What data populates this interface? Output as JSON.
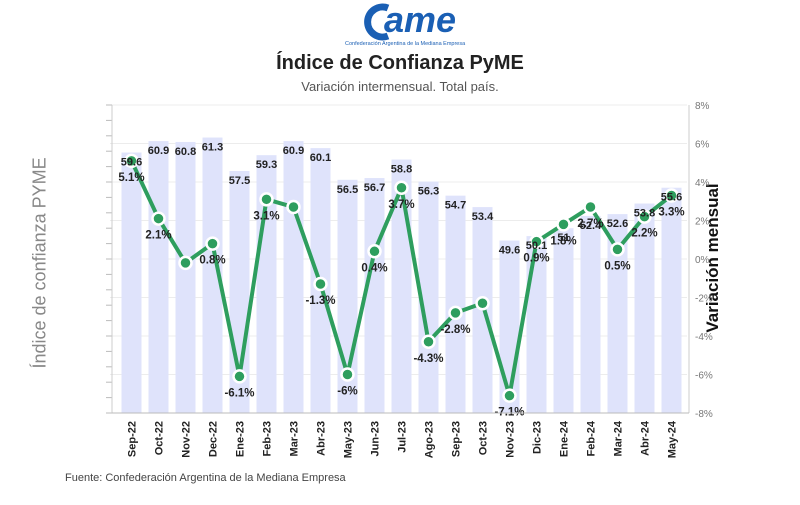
{
  "header": {
    "logo_text": "ame",
    "logo_subtitle": "Confederación Argentina de la Mediana Empresa",
    "title": "Índice de Confianza PyME",
    "subtitle": "Variación intermensual. Total país."
  },
  "footer": {
    "source": "Fuente: Confederación Argentina de la Mediana Empresa"
  },
  "colors": {
    "bar": "#dfe3fb",
    "line": "#2e9e5e",
    "marker_fill": "#2e9e5e",
    "marker_stroke": "#ffffff",
    "logo": "#1a5fb4"
  },
  "chart_data": {
    "type": "bar+line",
    "categories": [
      "Sep-22",
      "Oct-22",
      "Nov-22",
      "Dec-22",
      "Ene-23",
      "Feb-23",
      "Mar-23",
      "Abr-23",
      "May-23",
      "Jun-23",
      "Jul-23",
      "Ago-23",
      "Sep-23",
      "Oct-23",
      "Nov-23",
      "Dic-23",
      "Ene-24",
      "Feb-24",
      "Mar-24",
      "Abr-24",
      "May-24"
    ],
    "ylabel_left": "Índice de confianza PYME",
    "ylabel_right": "Variación mensual",
    "series": [
      {
        "name": "Índice de confianza PYME",
        "kind": "bar",
        "axis": "left",
        "values": [
          59.6,
          60.9,
          60.8,
          61.3,
          57.5,
          59.3,
          60.9,
          60.1,
          56.5,
          56.7,
          58.8,
          56.3,
          54.7,
          53.4,
          49.6,
          50.1,
          51,
          52.4,
          52.6,
          53.8,
          55.6
        ],
        "labels": [
          "59.6",
          "60.9",
          "60.8",
          "61.3",
          "57.5",
          "59.3",
          "60.9",
          "60.1",
          "56.5",
          "56.7",
          "58.8",
          "56.3",
          "54.7",
          "53.4",
          "49.6",
          "50.1",
          "51",
          "52.4",
          "52.6",
          "53.8",
          "55.6"
        ]
      },
      {
        "name": "Variación mensual",
        "kind": "line",
        "axis": "right",
        "values": [
          5.1,
          2.1,
          -0.2,
          0.8,
          -6.1,
          3.1,
          2.7,
          -1.3,
          -6.0,
          0.4,
          3.7,
          -4.3,
          -2.8,
          -2.3,
          -7.1,
          0.9,
          1.8,
          2.7,
          0.5,
          2.2,
          3.3
        ],
        "labels": [
          "5.1%",
          "2.1%",
          "",
          "0.8%",
          "-6.1%",
          "3.1%",
          "",
          "-1.3%",
          "-6%",
          "0.4%",
          "3.7%",
          "-4.3%",
          "-2.8%",
          "",
          "-7.1%",
          "0.9%",
          "1.8%",
          "2.7%",
          "0.5%",
          "2.2%",
          "3.3%"
        ]
      }
    ],
    "ylim_right": [
      -8,
      8
    ],
    "right_ticks": [
      "8%",
      "6%",
      "4%",
      "2%",
      "0%",
      "-2%",
      "-4%",
      "-6%",
      "-8%"
    ],
    "grid": true,
    "legend": "none"
  }
}
